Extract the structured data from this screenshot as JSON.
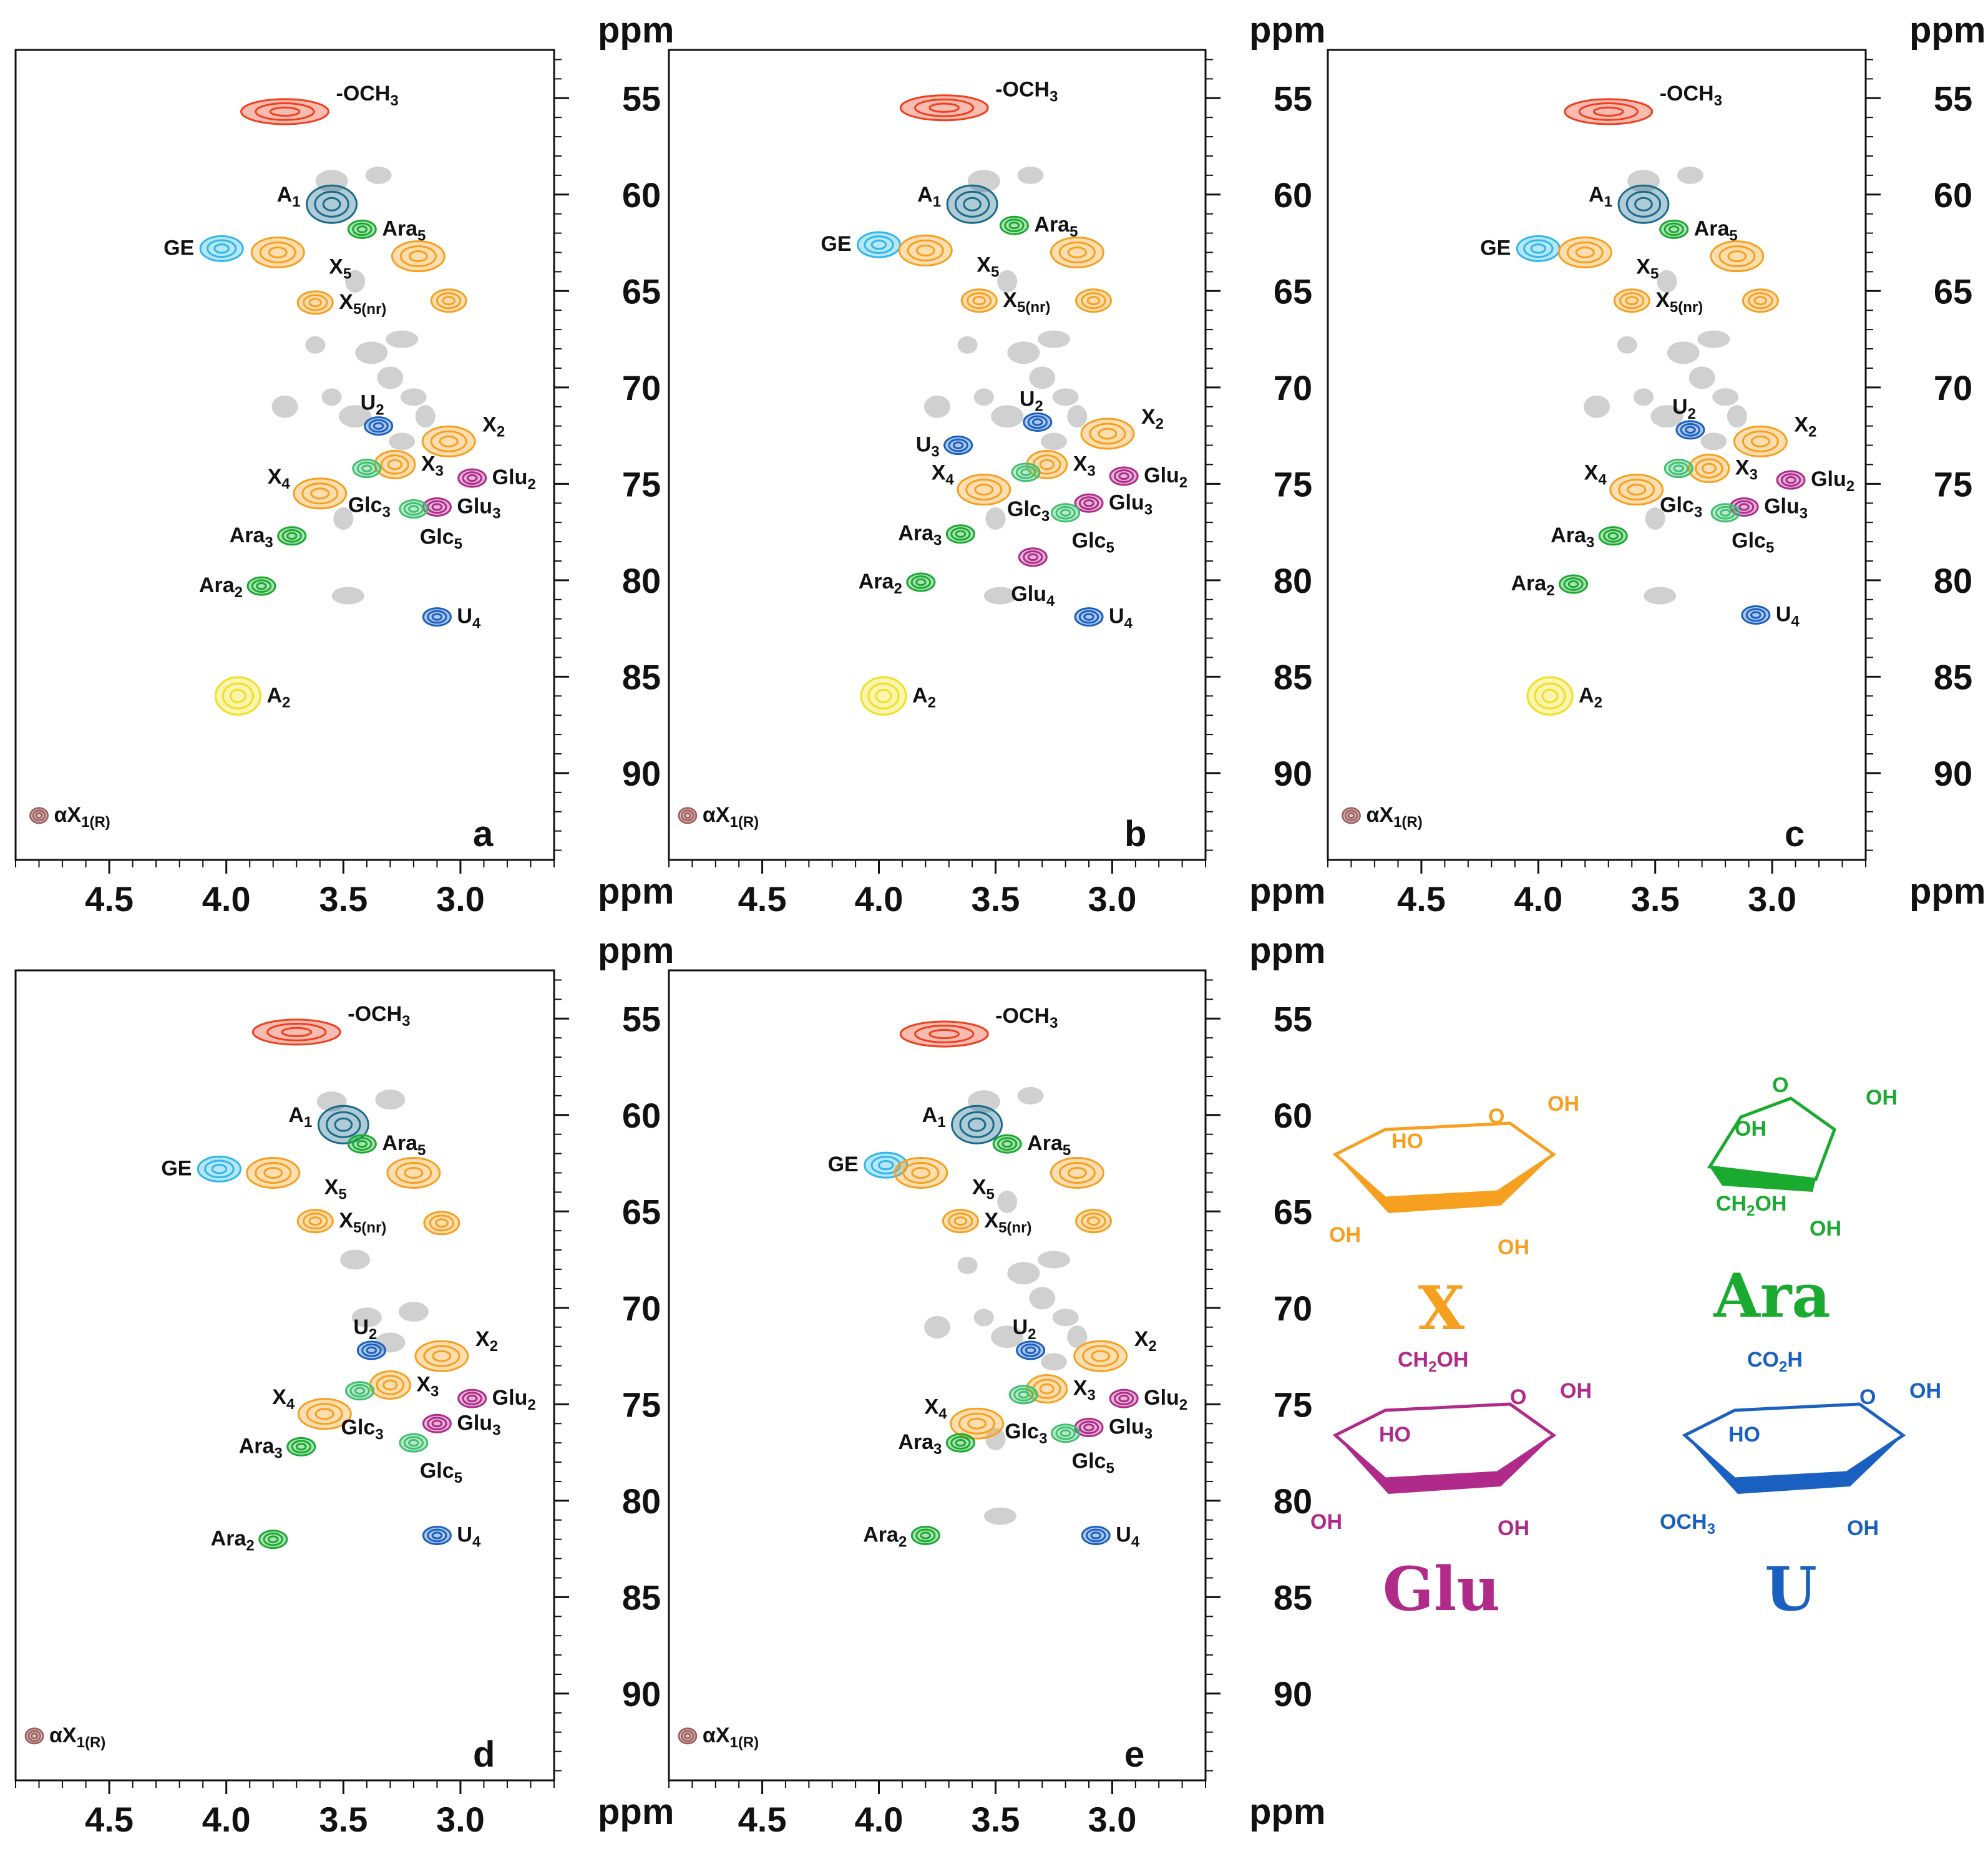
{
  "chart_data": [
    {
      "type": "scatter",
      "panel": "a",
      "x_unit": "ppm",
      "y_unit": "ppm",
      "xlim": [
        4.9,
        2.6
      ],
      "ylim": [
        52.5,
        94.5
      ],
      "x_ticks": [
        4.5,
        4.0,
        3.5,
        3.0
      ],
      "y_ticks": [
        55,
        60,
        65,
        70,
        75,
        80,
        85,
        90
      ],
      "peaks": [
        {
          "label": "-OCH",
          "sub": "3",
          "x": 3.75,
          "y": 55.7,
          "color": "#f04020"
        },
        {
          "label": "A",
          "sub": "1",
          "x": 3.55,
          "y": 60.5,
          "color": "#1a6a8a"
        },
        {
          "label": "Ara",
          "sub": "5",
          "x": 3.42,
          "y": 61.8,
          "color": "#1aaa30"
        },
        {
          "label": "GE",
          "sub": "",
          "x": 4.02,
          "y": 62.8,
          "color": "#30b8e8"
        },
        {
          "label": "X",
          "sub": "5",
          "x": 3.78,
          "y": 63.0,
          "color": "#f7a020"
        },
        {
          "label": "X",
          "sub": "5",
          "x": 3.18,
          "y": 63.2,
          "color": "#f7a020"
        },
        {
          "label": "X",
          "sub": "5(nr)",
          "x": 3.62,
          "y": 65.6,
          "color": "#f7a020"
        },
        {
          "label": "X",
          "sub": "5(nr)",
          "x": 3.05,
          "y": 65.5,
          "color": "#f7a020"
        },
        {
          "label": "U",
          "sub": "2",
          "x": 3.35,
          "y": 72.0,
          "color": "#1a60c0"
        },
        {
          "label": "X",
          "sub": "2",
          "x": 3.05,
          "y": 72.8,
          "color": "#f7a020"
        },
        {
          "label": "X",
          "sub": "4",
          "x": 3.6,
          "y": 75.5,
          "color": "#f7a020"
        },
        {
          "label": "X",
          "sub": "3",
          "x": 3.28,
          "y": 74.0,
          "color": "#f7a020"
        },
        {
          "label": "Glu",
          "sub": "2",
          "x": 2.95,
          "y": 74.7,
          "color": "#b02a8a"
        },
        {
          "label": "Glu",
          "sub": "3",
          "x": 3.1,
          "y": 76.2,
          "color": "#b02a8a"
        },
        {
          "label": "Glc",
          "sub": "3",
          "x": 3.4,
          "y": 74.2,
          "color": "#40c070"
        },
        {
          "label": "Glc",
          "sub": "5",
          "x": 3.2,
          "y": 76.3,
          "color": "#40c070"
        },
        {
          "label": "Ara",
          "sub": "3",
          "x": 3.72,
          "y": 77.7,
          "color": "#1aaa30"
        },
        {
          "label": "Ara",
          "sub": "2",
          "x": 3.85,
          "y": 80.3,
          "color": "#1aaa30"
        },
        {
          "label": "U",
          "sub": "4",
          "x": 3.1,
          "y": 81.9,
          "color": "#1a60c0"
        },
        {
          "label": "A",
          "sub": "2",
          "x": 3.95,
          "y": 86.0,
          "color": "#f0e020"
        },
        {
          "label": "αX",
          "sub": "1(R)",
          "x": 4.8,
          "y": 92.2,
          "color": "#a06060"
        }
      ]
    },
    {
      "type": "scatter",
      "panel": "b",
      "x_unit": "ppm",
      "y_unit": "ppm",
      "xlim": [
        4.9,
        2.6
      ],
      "ylim": [
        52.5,
        94.5
      ],
      "x_ticks": [
        4.5,
        4.0,
        3.5,
        3.0
      ],
      "y_ticks": [
        55,
        60,
        65,
        70,
        75,
        80,
        85,
        90
      ],
      "peaks": [
        {
          "label": "-OCH",
          "sub": "3",
          "x": 3.72,
          "y": 55.5,
          "color": "#f04020"
        },
        {
          "label": "A",
          "sub": "1",
          "x": 3.6,
          "y": 60.5,
          "color": "#1a6a8a"
        },
        {
          "label": "Ara",
          "sub": "5",
          "x": 3.42,
          "y": 61.6,
          "color": "#1aaa30"
        },
        {
          "label": "GE",
          "sub": "",
          "x": 4.0,
          "y": 62.6,
          "color": "#30b8e8"
        },
        {
          "label": "X",
          "sub": "5",
          "x": 3.8,
          "y": 62.9,
          "color": "#f7a020"
        },
        {
          "label": "X",
          "sub": "5",
          "x": 3.15,
          "y": 63.0,
          "color": "#f7a020"
        },
        {
          "label": "X",
          "sub": "5(nr)",
          "x": 3.57,
          "y": 65.5,
          "color": "#f7a020"
        },
        {
          "label": "X",
          "sub": "5(nr)",
          "x": 3.08,
          "y": 65.5,
          "color": "#f7a020"
        },
        {
          "label": "U",
          "sub": "2",
          "x": 3.32,
          "y": 71.8,
          "color": "#1a60c0"
        },
        {
          "label": "U",
          "sub": "3",
          "x": 3.66,
          "y": 73.0,
          "color": "#1a60c0"
        },
        {
          "label": "X",
          "sub": "2",
          "x": 3.02,
          "y": 72.4,
          "color": "#f7a020"
        },
        {
          "label": "X",
          "sub": "4",
          "x": 3.55,
          "y": 75.3,
          "color": "#f7a020"
        },
        {
          "label": "X",
          "sub": "3",
          "x": 3.28,
          "y": 74.0,
          "color": "#f7a020"
        },
        {
          "label": "Glu",
          "sub": "2",
          "x": 2.95,
          "y": 74.6,
          "color": "#b02a8a"
        },
        {
          "label": "Glu",
          "sub": "3",
          "x": 3.1,
          "y": 76.0,
          "color": "#b02a8a"
        },
        {
          "label": "Glc",
          "sub": "3",
          "x": 3.37,
          "y": 74.4,
          "color": "#40c070"
        },
        {
          "label": "Glc",
          "sub": "5",
          "x": 3.2,
          "y": 76.5,
          "color": "#40c070"
        },
        {
          "label": "Glu",
          "sub": "4",
          "x": 3.34,
          "y": 78.8,
          "color": "#b02a8a"
        },
        {
          "label": "Ara",
          "sub": "3",
          "x": 3.65,
          "y": 77.6,
          "color": "#1aaa30"
        },
        {
          "label": "Ara",
          "sub": "2",
          "x": 3.82,
          "y": 80.1,
          "color": "#1aaa30"
        },
        {
          "label": "U",
          "sub": "4",
          "x": 3.1,
          "y": 81.9,
          "color": "#1a60c0"
        },
        {
          "label": "A",
          "sub": "2",
          "x": 3.98,
          "y": 86.0,
          "color": "#f0e020"
        },
        {
          "label": "αX",
          "sub": "1(R)",
          "x": 4.82,
          "y": 92.2,
          "color": "#a06060"
        }
      ]
    },
    {
      "type": "scatter",
      "panel": "c",
      "x_unit": "ppm",
      "y_unit": "ppm",
      "xlim": [
        4.9,
        2.6
      ],
      "ylim": [
        52.5,
        94.5
      ],
      "x_ticks": [
        4.5,
        4.0,
        3.5,
        3.0
      ],
      "y_ticks": [
        55,
        60,
        65,
        70,
        75,
        80,
        85,
        90
      ],
      "peaks": [
        {
          "label": "-OCH",
          "sub": "3",
          "x": 3.7,
          "y": 55.7,
          "color": "#f04020"
        },
        {
          "label": "A",
          "sub": "1",
          "x": 3.55,
          "y": 60.5,
          "color": "#1a6a8a"
        },
        {
          "label": "Ara",
          "sub": "5",
          "x": 3.42,
          "y": 61.8,
          "color": "#1aaa30"
        },
        {
          "label": "GE",
          "sub": "",
          "x": 4.0,
          "y": 62.8,
          "color": "#30b8e8"
        },
        {
          "label": "X",
          "sub": "5",
          "x": 3.8,
          "y": 63.0,
          "color": "#f7a020"
        },
        {
          "label": "X",
          "sub": "5",
          "x": 3.15,
          "y": 63.2,
          "color": "#f7a020"
        },
        {
          "label": "X",
          "sub": "5(nr)",
          "x": 3.6,
          "y": 65.5,
          "color": "#f7a020"
        },
        {
          "label": "X",
          "sub": "5(nr)",
          "x": 3.05,
          "y": 65.5,
          "color": "#f7a020"
        },
        {
          "label": "U",
          "sub": "2",
          "x": 3.35,
          "y": 72.2,
          "color": "#1a60c0"
        },
        {
          "label": "X",
          "sub": "2",
          "x": 3.05,
          "y": 72.8,
          "color": "#f7a020"
        },
        {
          "label": "X",
          "sub": "4",
          "x": 3.58,
          "y": 75.3,
          "color": "#f7a020"
        },
        {
          "label": "X",
          "sub": "3",
          "x": 3.27,
          "y": 74.2,
          "color": "#f7a020"
        },
        {
          "label": "Glu",
          "sub": "2",
          "x": 2.92,
          "y": 74.8,
          "color": "#b02a8a"
        },
        {
          "label": "Glu",
          "sub": "3",
          "x": 3.12,
          "y": 76.2,
          "color": "#b02a8a"
        },
        {
          "label": "Glc",
          "sub": "3",
          "x": 3.4,
          "y": 74.2,
          "color": "#40c070"
        },
        {
          "label": "Glc",
          "sub": "5",
          "x": 3.2,
          "y": 76.5,
          "color": "#40c070"
        },
        {
          "label": "Ara",
          "sub": "3",
          "x": 3.68,
          "y": 77.7,
          "color": "#1aaa30"
        },
        {
          "label": "Ara",
          "sub": "2",
          "x": 3.85,
          "y": 80.2,
          "color": "#1aaa30"
        },
        {
          "label": "U",
          "sub": "4",
          "x": 3.07,
          "y": 81.8,
          "color": "#1a60c0"
        },
        {
          "label": "A",
          "sub": "2",
          "x": 3.95,
          "y": 86.0,
          "color": "#f0e020"
        },
        {
          "label": "αX",
          "sub": "1(R)",
          "x": 4.8,
          "y": 92.2,
          "color": "#a06060"
        }
      ]
    },
    {
      "type": "scatter",
      "panel": "d",
      "x_unit": "ppm",
      "y_unit": "ppm",
      "xlim": [
        4.9,
        2.6
      ],
      "ylim": [
        52.5,
        94.5
      ],
      "x_ticks": [
        4.5,
        4.0,
        3.5,
        3.0
      ],
      "y_ticks": [
        55,
        60,
        65,
        70,
        75,
        80,
        85,
        90
      ],
      "peaks": [
        {
          "label": "-OCH",
          "sub": "3",
          "x": 3.7,
          "y": 55.7,
          "color": "#f04020"
        },
        {
          "label": "A",
          "sub": "1",
          "x": 3.5,
          "y": 60.5,
          "color": "#1a6a8a"
        },
        {
          "label": "Ara",
          "sub": "5",
          "x": 3.42,
          "y": 61.5,
          "color": "#1aaa30"
        },
        {
          "label": "GE",
          "sub": "",
          "x": 4.03,
          "y": 62.8,
          "color": "#30b8e8"
        },
        {
          "label": "X",
          "sub": "5",
          "x": 3.8,
          "y": 63.0,
          "color": "#f7a020"
        },
        {
          "label": "X",
          "sub": "5",
          "x": 3.2,
          "y": 63.0,
          "color": "#f7a020"
        },
        {
          "label": "X",
          "sub": "5(nr)",
          "x": 3.62,
          "y": 65.5,
          "color": "#f7a020"
        },
        {
          "label": "X",
          "sub": "5(nr)",
          "x": 3.08,
          "y": 65.6,
          "color": "#f7a020"
        },
        {
          "label": "U",
          "sub": "2",
          "x": 3.38,
          "y": 72.2,
          "color": "#1a60c0"
        },
        {
          "label": "X",
          "sub": "2",
          "x": 3.08,
          "y": 72.5,
          "color": "#f7a020"
        },
        {
          "label": "X",
          "sub": "4",
          "x": 3.58,
          "y": 75.5,
          "color": "#f7a020"
        },
        {
          "label": "X",
          "sub": "3",
          "x": 3.3,
          "y": 74.0,
          "color": "#f7a020"
        },
        {
          "label": "Glu",
          "sub": "2",
          "x": 2.95,
          "y": 74.7,
          "color": "#b02a8a"
        },
        {
          "label": "Glu",
          "sub": "3",
          "x": 3.1,
          "y": 76.0,
          "color": "#b02a8a"
        },
        {
          "label": "Glc",
          "sub": "3",
          "x": 3.43,
          "y": 74.3,
          "color": "#40c070"
        },
        {
          "label": "Glc",
          "sub": "5",
          "x": 3.2,
          "y": 77.0,
          "color": "#40c070"
        },
        {
          "label": "Ara",
          "sub": "3",
          "x": 3.68,
          "y": 77.2,
          "color": "#1aaa30"
        },
        {
          "label": "Ara",
          "sub": "2",
          "x": 3.8,
          "y": 82.0,
          "color": "#1aaa30"
        },
        {
          "label": "U",
          "sub": "4",
          "x": 3.1,
          "y": 81.8,
          "color": "#1a60c0"
        },
        {
          "label": "αX",
          "sub": "1(R)",
          "x": 4.82,
          "y": 92.2,
          "color": "#a06060"
        }
      ]
    },
    {
      "type": "scatter",
      "panel": "e",
      "x_unit": "ppm",
      "y_unit": "ppm",
      "xlim": [
        4.9,
        2.6
      ],
      "ylim": [
        52.5,
        94.5
      ],
      "x_ticks": [
        4.5,
        4.0,
        3.5,
        3.0
      ],
      "y_ticks": [
        55,
        60,
        65,
        70,
        75,
        80,
        85,
        90
      ],
      "peaks": [
        {
          "label": "-OCH",
          "sub": "3",
          "x": 3.72,
          "y": 55.8,
          "color": "#f04020"
        },
        {
          "label": "A",
          "sub": "1",
          "x": 3.58,
          "y": 60.5,
          "color": "#1a6a8a"
        },
        {
          "label": "Ara",
          "sub": "5",
          "x": 3.45,
          "y": 61.5,
          "color": "#1aaa30"
        },
        {
          "label": "GE",
          "sub": "",
          "x": 3.97,
          "y": 62.6,
          "color": "#30b8e8"
        },
        {
          "label": "X",
          "sub": "5",
          "x": 3.82,
          "y": 63.0,
          "color": "#f7a020"
        },
        {
          "label": "X",
          "sub": "5",
          "x": 3.15,
          "y": 63.0,
          "color": "#f7a020"
        },
        {
          "label": "X",
          "sub": "5(nr)",
          "x": 3.65,
          "y": 65.5,
          "color": "#f7a020"
        },
        {
          "label": "X",
          "sub": "5(nr)",
          "x": 3.08,
          "y": 65.5,
          "color": "#f7a020"
        },
        {
          "label": "U",
          "sub": "2",
          "x": 3.35,
          "y": 72.2,
          "color": "#1a60c0"
        },
        {
          "label": "X",
          "sub": "2",
          "x": 3.05,
          "y": 72.5,
          "color": "#f7a020"
        },
        {
          "label": "X",
          "sub": "4",
          "x": 3.58,
          "y": 76.0,
          "color": "#f7a020"
        },
        {
          "label": "X",
          "sub": "3",
          "x": 3.28,
          "y": 74.2,
          "color": "#f7a020"
        },
        {
          "label": "Glu",
          "sub": "2",
          "x": 2.95,
          "y": 74.7,
          "color": "#b02a8a"
        },
        {
          "label": "Glu",
          "sub": "3",
          "x": 3.1,
          "y": 76.2,
          "color": "#b02a8a"
        },
        {
          "label": "Glc",
          "sub": "3",
          "x": 3.38,
          "y": 74.5,
          "color": "#40c070"
        },
        {
          "label": "Glc",
          "sub": "5",
          "x": 3.2,
          "y": 76.5,
          "color": "#40c070"
        },
        {
          "label": "Ara",
          "sub": "3",
          "x": 3.65,
          "y": 77.0,
          "color": "#1aaa30"
        },
        {
          "label": "Ara",
          "sub": "2",
          "x": 3.8,
          "y": 81.8,
          "color": "#1aaa30"
        },
        {
          "label": "U",
          "sub": "4",
          "x": 3.07,
          "y": 81.8,
          "color": "#1a60c0"
        },
        {
          "label": "αX",
          "sub": "1(R)",
          "x": 4.82,
          "y": 92.2,
          "color": "#a06060"
        }
      ]
    }
  ],
  "structures": [
    {
      "name": "X",
      "color": "#f7a020",
      "labels": [
        "O",
        "OH",
        "HO",
        "OH",
        "OH"
      ]
    },
    {
      "name": "Ara",
      "color": "#1aaa30",
      "labels": [
        "O",
        "OH",
        "OH",
        "CH2OH",
        "OH"
      ]
    },
    {
      "name": "Glu",
      "color": "#b02a8a",
      "labels": [
        "CH2OH",
        "O",
        "OH",
        "HO",
        "OH",
        "OH"
      ]
    },
    {
      "name": "U",
      "color": "#1a60c0",
      "labels": [
        "CO2H",
        "O",
        "OH",
        "HO",
        "OCH3",
        "OH"
      ]
    }
  ]
}
